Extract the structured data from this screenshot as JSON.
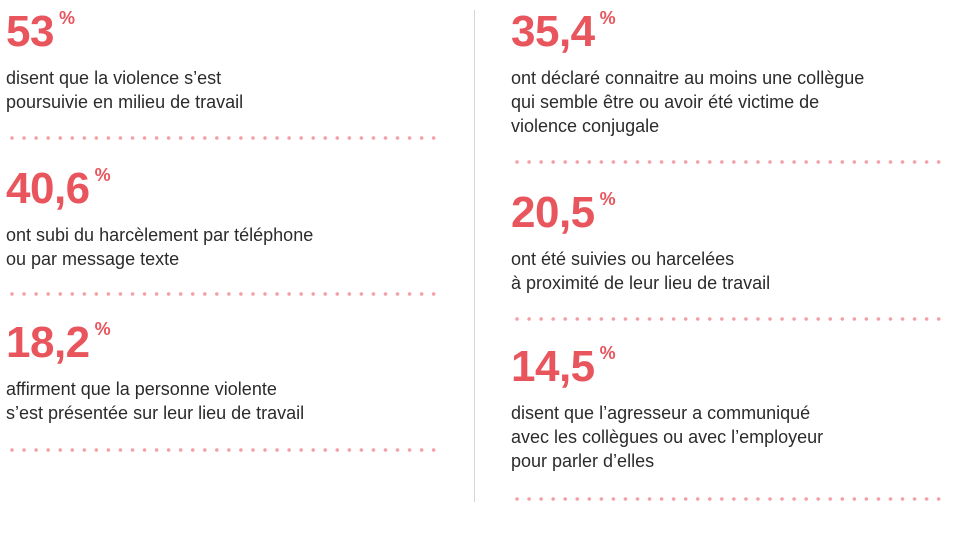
{
  "stats": {
    "left": [
      {
        "value": "53",
        "unit": "%",
        "lines": [
          "disent que la violence s’est",
          "poursuivie en milieu de travail"
        ]
      },
      {
        "value": "40,6",
        "unit": "%",
        "lines": [
          "ont subi du harcèlement par téléphone",
          "ou par message texte"
        ]
      },
      {
        "value": "18,2",
        "unit": "%",
        "lines": [
          "affirment que la personne violente",
          "s’est présentée sur leur lieu de travail"
        ]
      }
    ],
    "right": [
      {
        "value": "35,4",
        "unit": "%",
        "lines": [
          "ont déclaré connaitre au moins une collègue",
          "qui semble être ou avoir été victime de",
          "violence conjugale"
        ]
      },
      {
        "value": "20,5",
        "unit": "%",
        "lines": [
          "ont été suivies ou harcelées",
          "à proximité de leur lieu de travail"
        ]
      },
      {
        "value": "14,5",
        "unit": "%",
        "lines": [
          "disent que l’agresseur a communiqué",
          "avec les collègues ou avec l’employeur",
          "pour parler d’elles"
        ]
      }
    ]
  },
  "colors": {
    "accent": "#e8555d",
    "dots": "#f2a0a4",
    "text": "#2b2b2b",
    "divider": "#d6d6d6"
  }
}
